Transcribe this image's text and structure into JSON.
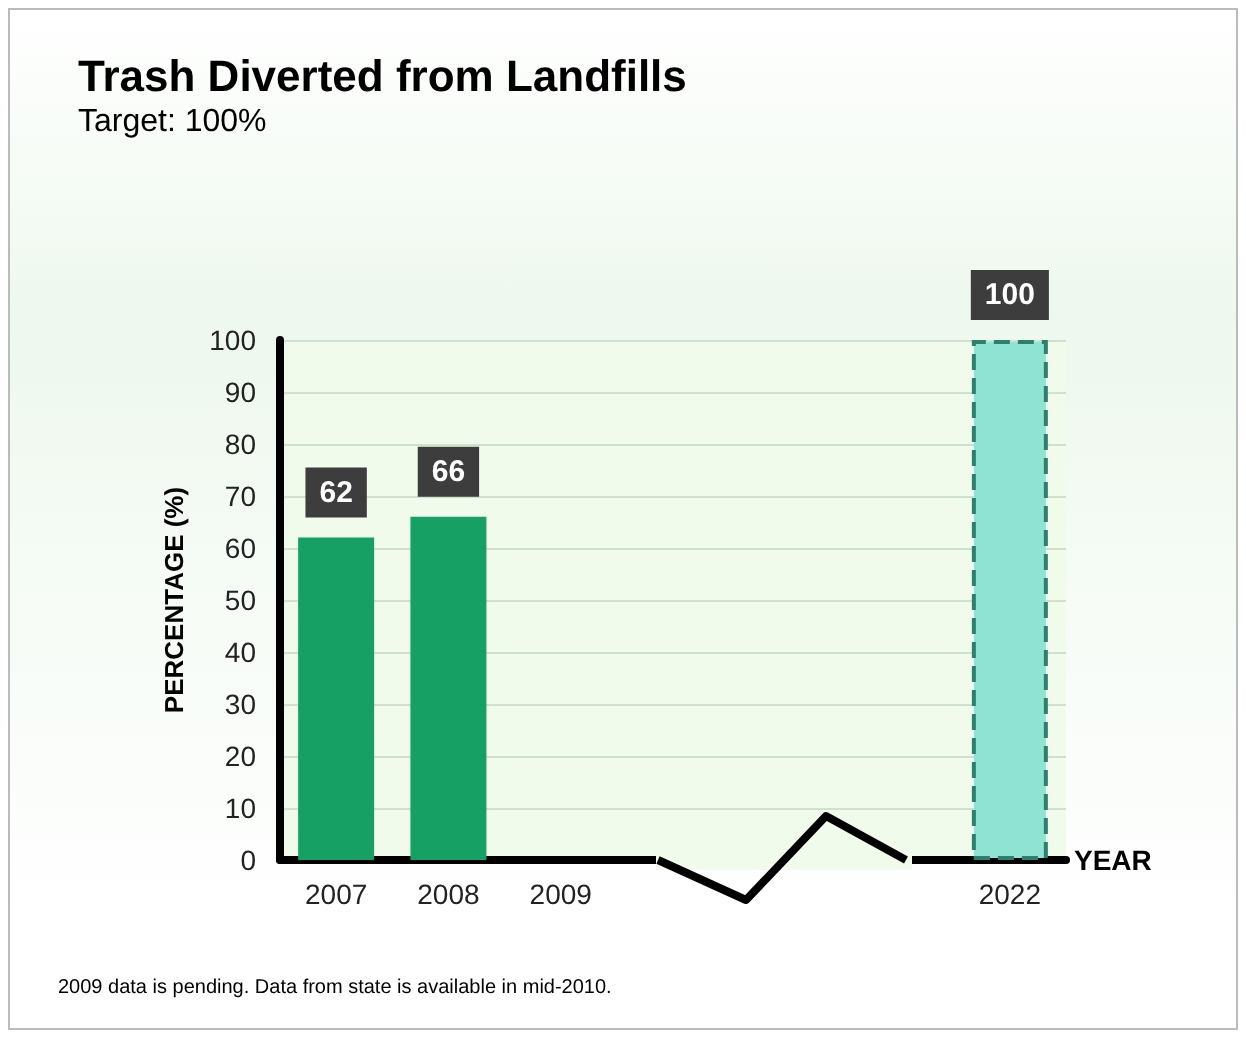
{
  "chart_data": {
    "type": "bar",
    "title": "Trash Diverted from Landfills",
    "subtitle": "Target: 100%",
    "xlabel": "YEAR",
    "ylabel": "PERCENTAGE (%)",
    "categories": [
      "2007",
      "2008",
      "2009",
      null,
      null,
      null,
      "2022"
    ],
    "values": [
      62,
      66,
      null,
      null,
      null,
      null,
      100
    ],
    "colors": [
      "#16a064",
      "#16a064",
      null,
      null,
      null,
      null,
      "#8fe3d2"
    ],
    "ylim": [
      0,
      100
    ],
    "yticks": [
      0,
      10,
      20,
      30,
      40,
      50,
      60,
      70,
      80,
      90,
      100
    ],
    "grid": "y",
    "data_labels": true,
    "annotations": [
      "2009 data is pending. Data from state is available in mid-2010."
    ]
  }
}
